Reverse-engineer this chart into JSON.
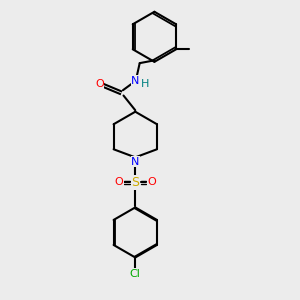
{
  "bg_color": "#ececec",
  "bond_color": "#000000",
  "colors": {
    "O": "#ff0000",
    "N": "#0000ff",
    "S": "#ccaa00",
    "Cl": "#00aa00",
    "H": "#008080",
    "C": "#000000"
  },
  "figsize": [
    3.0,
    3.0
  ],
  "dpi": 100
}
